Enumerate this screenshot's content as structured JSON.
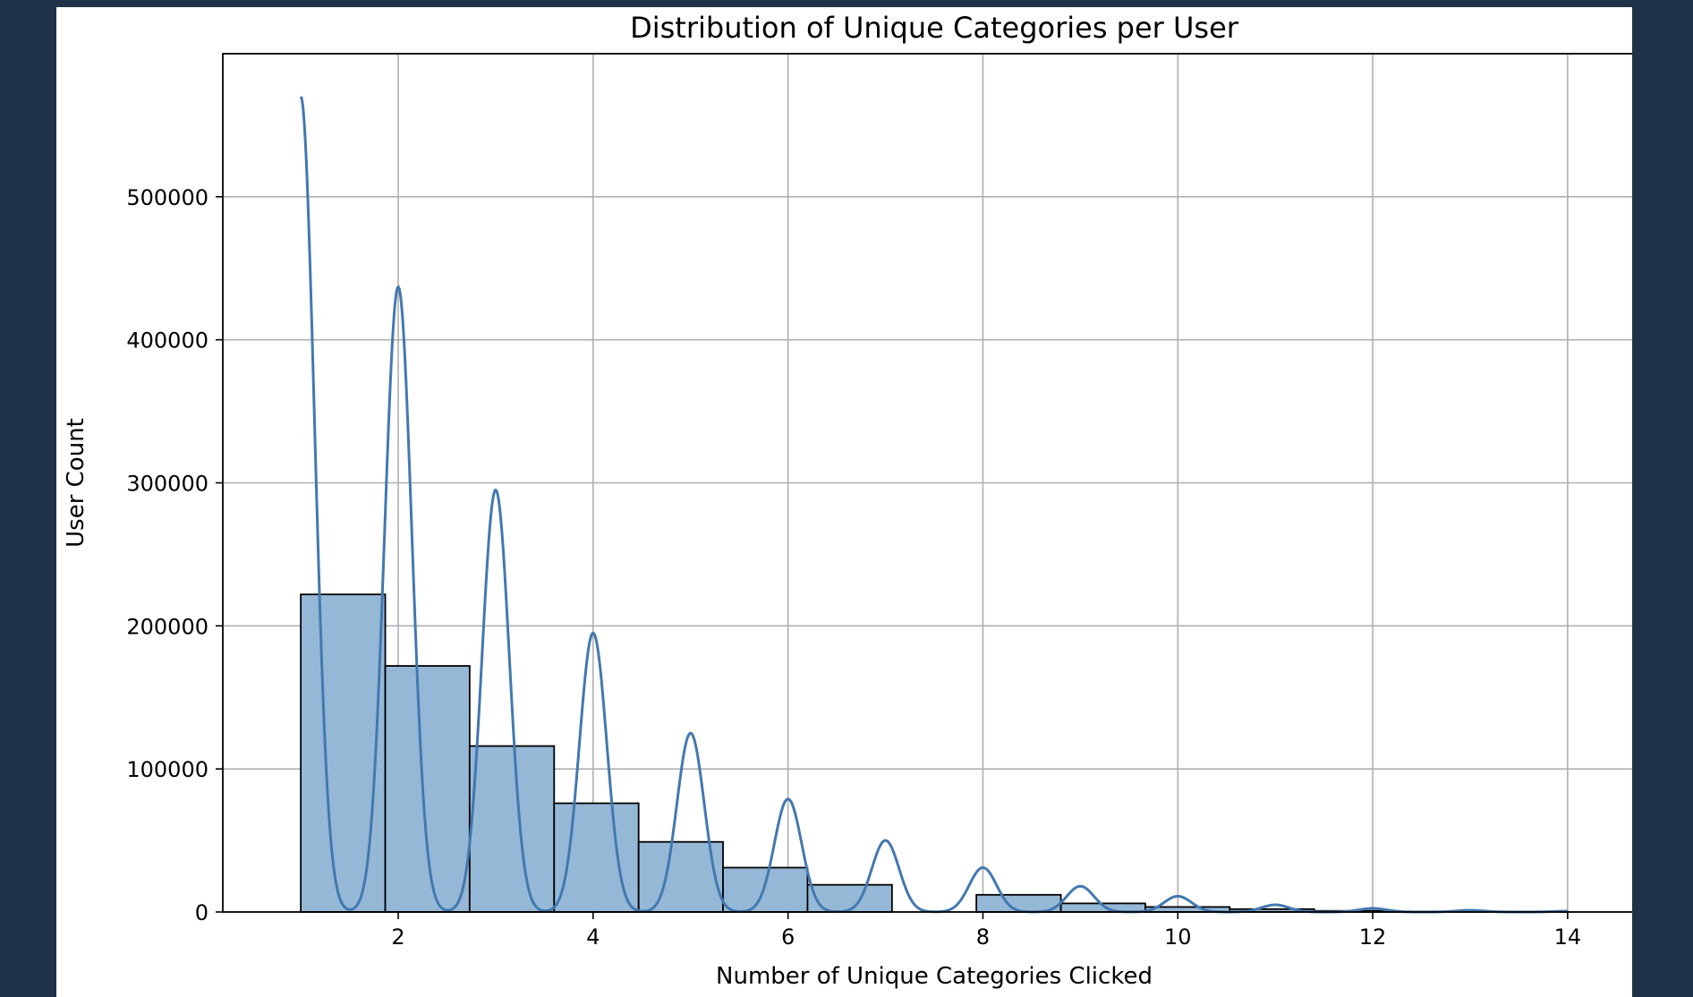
{
  "chart_data": {
    "type": "bar",
    "title": "Distribution of Unique Categories per User",
    "xlabel": "Number of Unique Categories Clicked",
    "ylabel": "User Count",
    "xlim": [
      0.2,
      14.8
    ],
    "ylim": [
      0,
      600000
    ],
    "xticks": [
      2,
      4,
      6,
      8,
      10,
      12,
      14
    ],
    "yticks": [
      0,
      100000,
      200000,
      300000,
      400000,
      500000
    ],
    "grid": true,
    "bins": [
      {
        "x0": 1.0,
        "x1": 1.867,
        "count": 222000
      },
      {
        "x0": 1.867,
        "x1": 2.733,
        "count": 172000
      },
      {
        "x0": 2.733,
        "x1": 3.6,
        "count": 116000
      },
      {
        "x0": 3.6,
        "x1": 4.467,
        "count": 76000
      },
      {
        "x0": 4.467,
        "x1": 5.333,
        "count": 49000
      },
      {
        "x0": 5.333,
        "x1": 6.2,
        "count": 31000
      },
      {
        "x0": 6.2,
        "x1": 7.067,
        "count": 19000
      },
      {
        "x0": 7.067,
        "x1": 7.933,
        "count": 0
      },
      {
        "x0": 7.933,
        "x1": 8.8,
        "count": 12000
      },
      {
        "x0": 8.8,
        "x1": 9.667,
        "count": 6000
      },
      {
        "x0": 9.667,
        "x1": 10.533,
        "count": 3500
      },
      {
        "x0": 10.533,
        "x1": 11.4,
        "count": 2000
      },
      {
        "x0": 11.4,
        "x1": 12.267,
        "count": 800
      },
      {
        "x0": 12.267,
        "x1": 13.133,
        "count": 400
      },
      {
        "x0": 13.133,
        "x1": 14.0,
        "count": 200
      }
    ],
    "kde": {
      "peaks": [
        {
          "x": 1,
          "y": 570000
        },
        {
          "x": 2,
          "y": 437000
        },
        {
          "x": 3,
          "y": 295000
        },
        {
          "x": 4,
          "y": 195000
        },
        {
          "x": 5,
          "y": 125000
        },
        {
          "x": 6,
          "y": 79000
        },
        {
          "x": 7,
          "y": 50000
        },
        {
          "x": 8,
          "y": 31000
        },
        {
          "x": 9,
          "y": 18000
        },
        {
          "x": 10,
          "y": 11000
        },
        {
          "x": 11,
          "y": 5000
        },
        {
          "x": 12,
          "y": 2500
        },
        {
          "x": 13,
          "y": 1200
        },
        {
          "x": 14,
          "y": 600
        }
      ]
    },
    "colors": {
      "bar_fill": "#95b8d6",
      "bar_edge": "#000000",
      "kde_line": "#4378b0"
    }
  }
}
